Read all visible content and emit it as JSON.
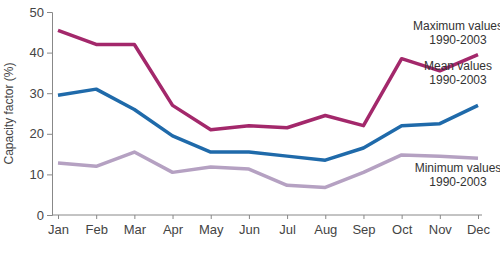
{
  "chart_data": {
    "type": "line",
    "y_label": "Capacity factor (%)",
    "categories": [
      "Jan",
      "Feb",
      "Mar",
      "Apr",
      "May",
      "Jun",
      "Jul",
      "Aug",
      "Sep",
      "Oct",
      "Nov",
      "Dec"
    ],
    "series": [
      {
        "name": "Maximum values 1990-2003",
        "color": "#a3286b",
        "values": [
          45.5,
          42,
          42,
          27,
          21,
          22,
          21.5,
          24.5,
          22,
          38.5,
          35.5,
          39.5
        ]
      },
      {
        "name": "Mean values 1990-2003",
        "color": "#1f6aaa",
        "values": [
          29.5,
          31,
          26,
          19.5,
          15.5,
          15.5,
          14.5,
          13.5,
          16.5,
          22,
          22.5,
          27
        ]
      },
      {
        "name": "Minimum values 1990-2003",
        "color": "#b5a1c2",
        "values": [
          12.8,
          12,
          15.5,
          10.5,
          11.8,
          11.3,
          7.3,
          6.8,
          10.5,
          14.8,
          14.5,
          14
        ]
      }
    ],
    "ylim": [
      0,
      50
    ],
    "yticks": [
      0,
      10,
      20,
      30,
      40,
      50
    ],
    "grid": false
  }
}
